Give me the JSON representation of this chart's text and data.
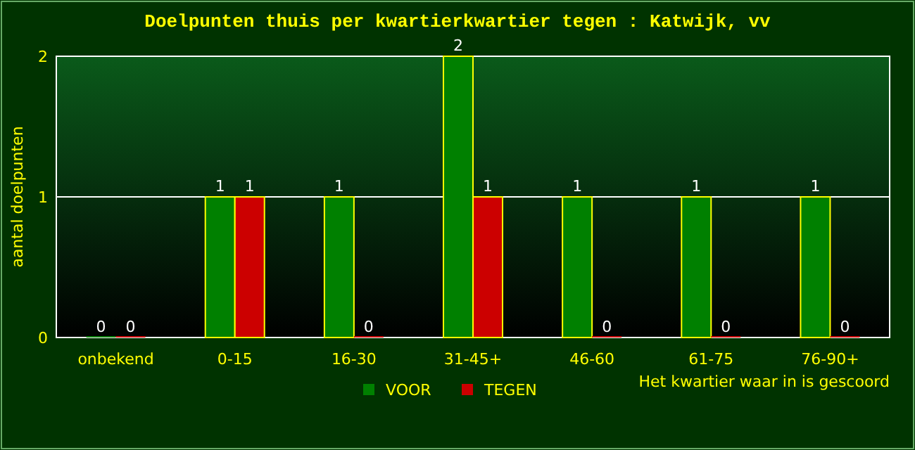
{
  "chart_data": {
    "type": "bar",
    "title": "Doelpunten thuis per kwartierkwartier tegen : Katwijk, vv",
    "xlabel": "Het kwartier waar in is gescoord",
    "ylabel": "aantal doelpunten",
    "categories": [
      "onbekend",
      "0-15",
      "16-30",
      "31-45+",
      "46-60",
      "61-75",
      "76-90+"
    ],
    "series": [
      {
        "name": "VOOR",
        "color": "#008000",
        "values": [
          0,
          1,
          1,
          2,
          1,
          1,
          1
        ]
      },
      {
        "name": "TEGEN",
        "color": "#cc0000",
        "values": [
          0,
          1,
          0,
          1,
          0,
          0,
          0
        ]
      }
    ],
    "ylim": [
      0,
      2
    ],
    "yticks": [
      0,
      1,
      2
    ],
    "grid": "y",
    "legend": "bottom",
    "data_labels": true
  }
}
